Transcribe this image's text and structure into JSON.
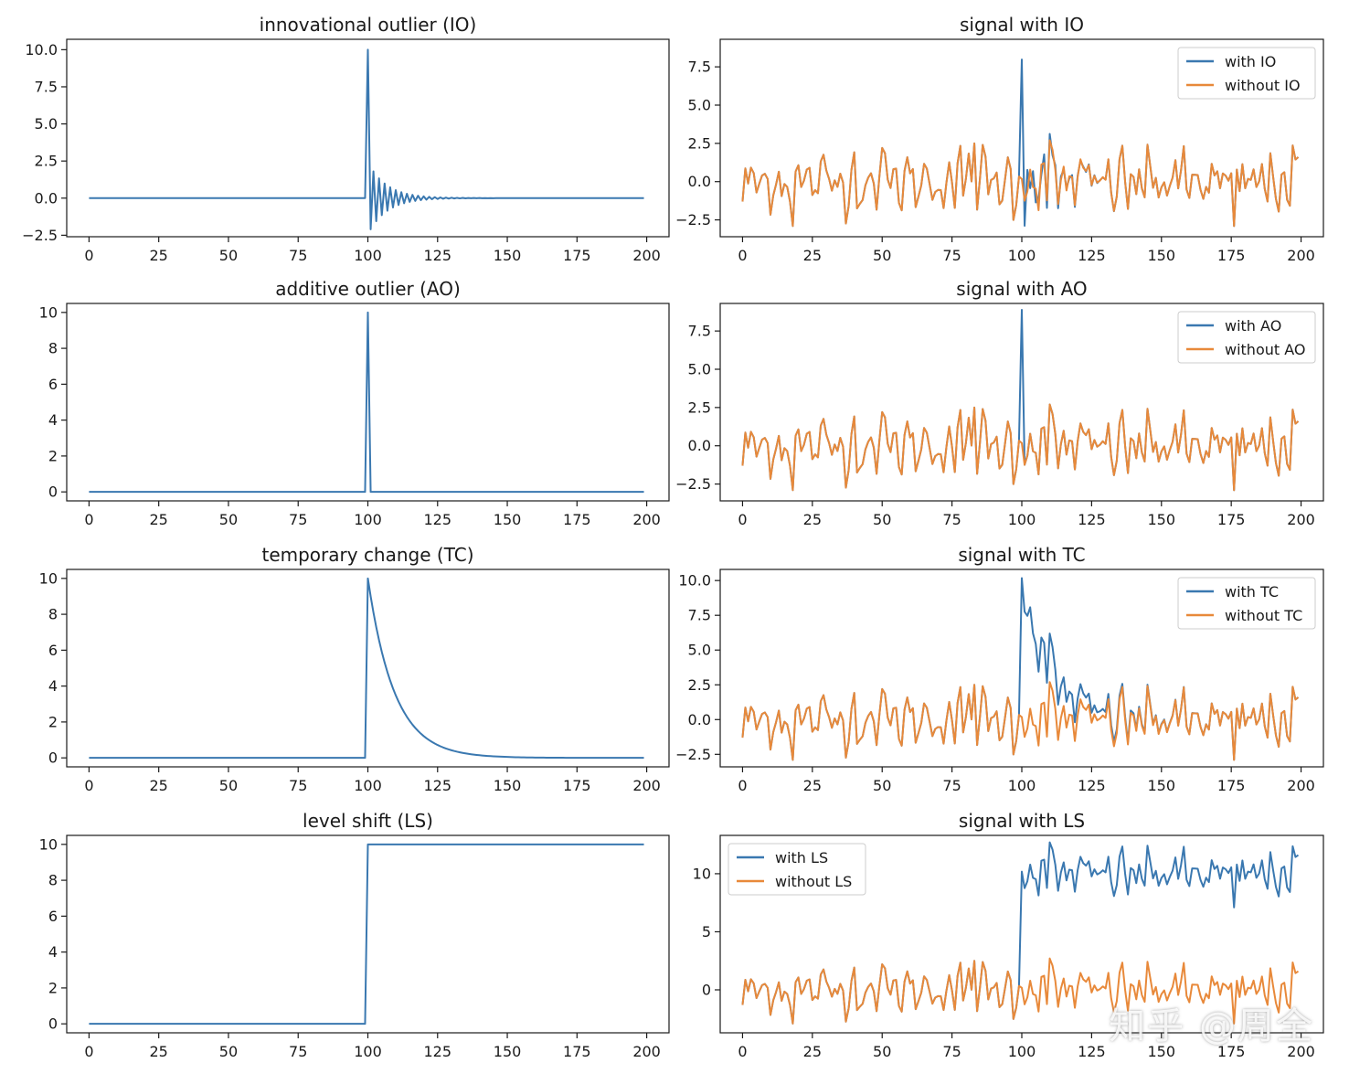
{
  "colors": {
    "blue": "#3a78b0",
    "orange": "#e8893a"
  },
  "watermark": "知乎 @周全",
  "chart_data": [
    {
      "type": "line",
      "title": "innovational outlier (IO)",
      "xlim": [
        -8,
        208
      ],
      "ylim": [
        -2.6,
        10.7
      ],
      "xticks": [
        0,
        25,
        50,
        75,
        100,
        125,
        150,
        175,
        200
      ],
      "xtick_labels": [
        "0",
        "25",
        "50",
        "75",
        "100",
        "125",
        "150",
        "175",
        "200"
      ],
      "yticks": [
        -2.5,
        0,
        2.5,
        5,
        7.5,
        10
      ],
      "ytick_labels": [
        "−2.5",
        "0.0",
        "2.5",
        "5.0",
        "7.5",
        "10.0"
      ],
      "series": [
        {
          "kind": "io",
          "color": "#3a78b0",
          "values": []
        }
      ],
      "legend": null
    },
    {
      "type": "line",
      "title": "signal with IO",
      "xlim": [
        -8,
        208
      ],
      "ylim": [
        -3.6,
        9.3
      ],
      "xticks": [
        0,
        25,
        50,
        75,
        100,
        125,
        150,
        175,
        200
      ],
      "xtick_labels": [
        "0",
        "25",
        "50",
        "75",
        "100",
        "125",
        "150",
        "175",
        "200"
      ],
      "yticks": [
        -2.5,
        0,
        2.5,
        5,
        7.5
      ],
      "ytick_labels": [
        "−2.5",
        "0.0",
        "2.5",
        "5.0",
        "7.5"
      ],
      "series": [
        {
          "name": "with IO",
          "kind": "noise+io",
          "color": "#3a78b0"
        },
        {
          "name": "without IO",
          "kind": "noise",
          "color": "#e8893a"
        }
      ],
      "legend": "top-right"
    },
    {
      "type": "line",
      "title": "additive outlier (AO)",
      "xlim": [
        -8,
        208
      ],
      "ylim": [
        -0.5,
        10.5
      ],
      "xticks": [
        0,
        25,
        50,
        75,
        100,
        125,
        150,
        175,
        200
      ],
      "xtick_labels": [
        "0",
        "25",
        "50",
        "75",
        "100",
        "125",
        "150",
        "175",
        "200"
      ],
      "yticks": [
        0,
        2,
        4,
        6,
        8,
        10
      ],
      "ytick_labels": [
        "0",
        "2",
        "4",
        "6",
        "8",
        "10"
      ],
      "series": [
        {
          "kind": "ao",
          "color": "#3a78b0"
        }
      ],
      "legend": null
    },
    {
      "type": "line",
      "title": "signal with AO",
      "xlim": [
        -8,
        208
      ],
      "ylim": [
        -3.6,
        9.3
      ],
      "xticks": [
        0,
        25,
        50,
        75,
        100,
        125,
        150,
        175,
        200
      ],
      "xtick_labels": [
        "0",
        "25",
        "50",
        "75",
        "100",
        "125",
        "150",
        "175",
        "200"
      ],
      "yticks": [
        -2.5,
        0,
        2.5,
        5,
        7.5
      ],
      "ytick_labels": [
        "−2.5",
        "0.0",
        "2.5",
        "5.0",
        "7.5"
      ],
      "series": [
        {
          "name": "with AO",
          "kind": "noise+ao",
          "color": "#3a78b0"
        },
        {
          "name": "without AO",
          "kind": "noise",
          "color": "#e8893a"
        }
      ],
      "legend": "top-right"
    },
    {
      "type": "line",
      "title": "temporary change (TC)",
      "xlim": [
        -8,
        208
      ],
      "ylim": [
        -0.5,
        10.5
      ],
      "xticks": [
        0,
        25,
        50,
        75,
        100,
        125,
        150,
        175,
        200
      ],
      "xtick_labels": [
        "0",
        "25",
        "50",
        "75",
        "100",
        "125",
        "150",
        "175",
        "200"
      ],
      "yticks": [
        0,
        2,
        4,
        6,
        8,
        10
      ],
      "ytick_labels": [
        "0",
        "2",
        "4",
        "6",
        "8",
        "10"
      ],
      "series": [
        {
          "kind": "tc",
          "color": "#3a78b0"
        }
      ],
      "legend": null
    },
    {
      "type": "line",
      "title": "signal with TC",
      "xlim": [
        -8,
        208
      ],
      "ylim": [
        -3.4,
        10.8
      ],
      "xticks": [
        0,
        25,
        50,
        75,
        100,
        125,
        150,
        175,
        200
      ],
      "xtick_labels": [
        "0",
        "25",
        "50",
        "75",
        "100",
        "125",
        "150",
        "175",
        "200"
      ],
      "yticks": [
        -2.5,
        0,
        2.5,
        5,
        7.5,
        10
      ],
      "ytick_labels": [
        "−2.5",
        "0.0",
        "2.5",
        "5.0",
        "7.5",
        "10.0"
      ],
      "series": [
        {
          "name": "with TC",
          "kind": "noise+tc",
          "color": "#3a78b0"
        },
        {
          "name": "without TC",
          "kind": "noise",
          "color": "#e8893a"
        }
      ],
      "legend": "top-right"
    },
    {
      "type": "line",
      "title": "level shift (LS)",
      "xlim": [
        -8,
        208
      ],
      "ylim": [
        -0.5,
        10.5
      ],
      "xticks": [
        0,
        25,
        50,
        75,
        100,
        125,
        150,
        175,
        200
      ],
      "xtick_labels": [
        "0",
        "25",
        "50",
        "75",
        "100",
        "125",
        "150",
        "175",
        "200"
      ],
      "yticks": [
        0,
        2,
        4,
        6,
        8,
        10
      ],
      "ytick_labels": [
        "0",
        "2",
        "4",
        "6",
        "8",
        "10"
      ],
      "series": [
        {
          "kind": "ls",
          "color": "#3a78b0"
        }
      ],
      "legend": null
    },
    {
      "type": "line",
      "title": "signal with LS",
      "xlim": [
        -8,
        208
      ],
      "ylim": [
        -3.7,
        13.3
      ],
      "xticks": [
        0,
        25,
        50,
        75,
        100,
        125,
        150,
        175,
        200
      ],
      "xtick_labels": [
        "0",
        "25",
        "50",
        "75",
        "100",
        "125",
        "150",
        "175",
        "200"
      ],
      "yticks": [
        0,
        5,
        10
      ],
      "ytick_labels": [
        "0",
        "5",
        "10"
      ],
      "series": [
        {
          "name": "with LS",
          "kind": "noise+ls",
          "color": "#3a78b0"
        },
        {
          "name": "without LS",
          "kind": "noise",
          "color": "#e8893a"
        }
      ],
      "legend": "top-left"
    }
  ]
}
